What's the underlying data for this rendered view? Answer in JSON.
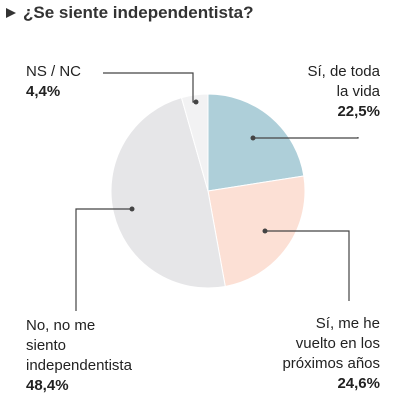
{
  "title": "¿Se siente independentista?",
  "chart_data": {
    "type": "pie",
    "title": "¿Se siente independentista?",
    "slices": [
      {
        "label": "Sí, de toda la vida",
        "value": 22.5,
        "value_label": "22,5%",
        "color": "#aecfd9"
      },
      {
        "label": "Sí, me he vuelto en los próximos años",
        "value": 24.6,
        "value_label": "24,6%",
        "color": "#fce0d5"
      },
      {
        "label": "No, no me siento independentista",
        "value": 48.4,
        "value_label": "48,4%",
        "color": "#e6e6e8"
      },
      {
        "label": "NS / NC",
        "value": 4.4,
        "value_label": "4,4%",
        "color": "#f2f2f3"
      }
    ],
    "start_angle_deg": 0,
    "direction": "clockwise"
  },
  "labels": {
    "slice0": {
      "lines": [
        "Sí, de toda",
        "la vida"
      ],
      "pct": "22,5%"
    },
    "slice1": {
      "lines": [
        "Sí, me he",
        "vuelto en los",
        "próximos años"
      ],
      "pct": "24,6%"
    },
    "slice2": {
      "lines": [
        "No, no me",
        "siento",
        "independentista"
      ],
      "pct": "48,4%"
    },
    "slice3": {
      "lines": [
        "NS / NC"
      ],
      "pct": "4,4%"
    }
  },
  "colors": {
    "leader": "#444444",
    "slice_border": "#ffffff",
    "title_bullet": "#333333"
  }
}
